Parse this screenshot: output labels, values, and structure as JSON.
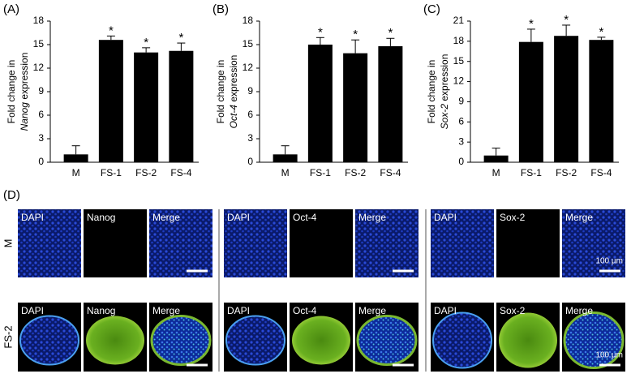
{
  "chart_data": [
    {
      "type": "bar",
      "panel": "(A)",
      "ylabel_prefix": "Fold change in",
      "ylabel_gene": "Nanog",
      "ylabel_suffix": "expression",
      "categories": [
        "M",
        "FS-1",
        "FS-2",
        "FS-4"
      ],
      "values": [
        1.0,
        15.6,
        14.0,
        14.2
      ],
      "errors": [
        1.1,
        0.5,
        0.6,
        1.0
      ],
      "annotations": [
        null,
        "*",
        "*",
        "*"
      ],
      "color": "#000000",
      "ylim": [
        0,
        18
      ],
      "yticks": [
        0,
        3,
        6,
        9,
        12,
        15,
        18
      ]
    },
    {
      "type": "bar",
      "panel": "(B)",
      "ylabel_prefix": "Fold change in",
      "ylabel_gene": "Oct-4",
      "ylabel_suffix": "expression",
      "categories": [
        "M",
        "FS-1",
        "FS-2",
        "FS-4"
      ],
      "values": [
        1.0,
        15.0,
        13.9,
        14.8
      ],
      "errors": [
        1.1,
        0.9,
        1.7,
        1.0
      ],
      "annotations": [
        null,
        "*",
        "*",
        "*"
      ],
      "color": "#000000",
      "ylim": [
        0,
        18
      ],
      "yticks": [
        0,
        3,
        6,
        9,
        12,
        15,
        18
      ]
    },
    {
      "type": "bar",
      "panel": "(C)",
      "ylabel_prefix": "Fold change in",
      "ylabel_gene": "Sox-2",
      "ylabel_suffix": "expression",
      "categories": [
        "M",
        "FS-1",
        "FS-2",
        "FS-4"
      ],
      "values": [
        1.0,
        17.9,
        18.8,
        18.2
      ],
      "errors": [
        1.1,
        1.9,
        1.6,
        0.4
      ],
      "annotations": [
        null,
        "*",
        "*",
        "*"
      ],
      "color": "#000000",
      "ylim": [
        0,
        21
      ],
      "yticks": [
        0,
        3,
        6,
        9,
        12,
        15,
        18,
        21
      ]
    }
  ],
  "panel_d": {
    "label": "(D)",
    "rows": [
      "M",
      "FS-2"
    ],
    "groups": [
      {
        "channels": [
          "DAPI",
          "Nanog",
          "Merge"
        ]
      },
      {
        "channels": [
          "DAPI",
          "Oct-4",
          "Merge"
        ]
      },
      {
        "channels": [
          "DAPI",
          "Sox-2",
          "Merge"
        ]
      }
    ],
    "scale_bar": "100 µm"
  }
}
